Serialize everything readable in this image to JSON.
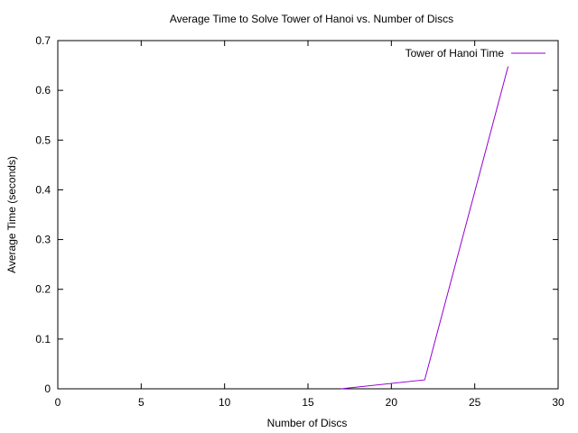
{
  "chart_data": {
    "type": "line",
    "title": "Average Time to Solve Tower of Hanoi vs. Number of Discs",
    "xlabel": "Number of Discs",
    "ylabel": "Average Time (seconds)",
    "xlim": [
      0,
      30
    ],
    "ylim": [
      0,
      0.7
    ],
    "xticks": [
      0,
      5,
      10,
      15,
      20,
      25,
      30
    ],
    "yticks": [
      0,
      0.1,
      0.2,
      0.3,
      0.4,
      0.5,
      0.6,
      0.7
    ],
    "grid": false,
    "legend_position": "top-right",
    "series": [
      {
        "name": "Tower of Hanoi Time",
        "color": "#9400d3",
        "x": [
          17,
          22,
          27
        ],
        "y": [
          0.0,
          0.018,
          0.648
        ]
      }
    ]
  }
}
